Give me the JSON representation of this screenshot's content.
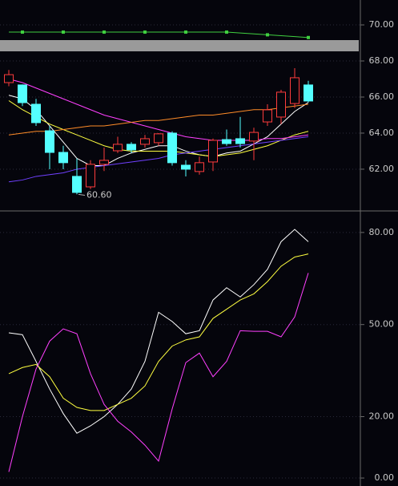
{
  "chart_data": [
    {
      "type": "candlestick",
      "open": [
        66.8,
        66.67,
        65.6,
        64.13,
        62.93,
        61.6,
        61.02,
        62.27,
        63.02,
        63.38,
        63.38,
        63.47,
        64.0,
        62.22,
        61.87,
        62.4,
        63.64,
        63.69,
        63.56,
        64.62,
        64.89,
        65.64,
        66.67
      ],
      "high": [
        67.5,
        66.7,
        65.9,
        64.4,
        63.3,
        62.6,
        62.5,
        63.2,
        63.8,
        63.5,
        63.9,
        64.0,
        64.1,
        62.5,
        62.7,
        63.7,
        64.2,
        64.9,
        64.3,
        65.6,
        66.4,
        67.6,
        66.9
      ],
      "low": [
        66.6,
        65.5,
        64.4,
        62.0,
        62.0,
        60.6,
        60.9,
        61.9,
        62.9,
        62.9,
        63.2,
        63.3,
        62.2,
        61.6,
        61.7,
        61.9,
        63.3,
        63.2,
        62.5,
        64.4,
        64.5,
        65.4,
        65.7
      ],
      "close": [
        67.24,
        65.69,
        64.58,
        62.93,
        62.36,
        60.71,
        62.27,
        62.49,
        63.38,
        63.07,
        63.69,
        63.96,
        62.36,
        62.0,
        62.36,
        63.6,
        63.42,
        63.42,
        64.04,
        65.29,
        66.27,
        67.07,
        65.78
      ],
      "up_color": "#ff3c3c",
      "down_color": "#54ffff",
      "series": [
        {
          "color": "#ffffff",
          "values": [
            66.1,
            65.9,
            65.3,
            64.4,
            63.5,
            62.6,
            62.2,
            62.2,
            62.6,
            62.9,
            63.1,
            63.3,
            63.3,
            63.0,
            62.8,
            62.7,
            62.9,
            63.0,
            63.4,
            63.8,
            64.5,
            65.2,
            65.7
          ]
        },
        {
          "color": "#ffff40",
          "values": [
            65.8,
            65.3,
            64.9,
            64.5,
            64.2,
            63.9,
            63.6,
            63.3,
            63.1,
            63.0,
            63.0,
            63.0,
            63.0,
            62.9,
            62.8,
            62.7,
            62.8,
            62.9,
            63.1,
            63.3,
            63.6,
            63.9,
            64.1
          ]
        },
        {
          "color": "#ff40ff",
          "values": [
            67.0,
            66.8,
            66.5,
            66.2,
            65.9,
            65.6,
            65.3,
            65.0,
            64.8,
            64.6,
            64.4,
            64.2,
            64.0,
            63.8,
            63.7,
            63.6,
            63.6,
            63.6,
            63.6,
            63.7,
            63.7,
            63.8,
            63.9
          ]
        },
        {
          "color": "#ff8c28",
          "values": [
            63.9,
            64.0,
            64.1,
            64.1,
            64.2,
            64.3,
            64.4,
            64.4,
            64.5,
            64.6,
            64.7,
            64.7,
            64.8,
            64.9,
            65.0,
            65.0,
            65.1,
            65.2,
            65.3,
            65.3,
            65.4,
            65.5,
            65.6
          ]
        },
        {
          "color": "#7040ff",
          "values": [
            61.3,
            61.4,
            61.6,
            61.7,
            61.8,
            62.0,
            62.1,
            62.2,
            62.3,
            62.4,
            62.5,
            62.6,
            62.8,
            62.9,
            63.0,
            63.1,
            63.2,
            63.3,
            63.4,
            63.5,
            63.6,
            63.7,
            63.8
          ]
        },
        {
          "color": "#40d040",
          "values": [
            69.6,
            69.6,
            69.6,
            69.6,
            69.6,
            69.6,
            69.6,
            69.6,
            69.6,
            69.6,
            69.6,
            69.6,
            69.6,
            69.6,
            69.6,
            69.6,
            69.6,
            69.55,
            69.5,
            69.45,
            69.4,
            69.35,
            69.3
          ]
        }
      ],
      "low_label": "60.60",
      "ylim": [
        59.73,
        71.38
      ],
      "yticks": [
        {
          "value": 62,
          "label": "62.00"
        },
        {
          "value": 64,
          "label": "64.00"
        },
        {
          "value": 66,
          "label": "66.00"
        },
        {
          "value": 68,
          "label": "68.00"
        },
        {
          "value": 70,
          "label": "70.00"
        }
      ],
      "grid": true
    },
    {
      "type": "line",
      "series": [
        {
          "color": "#ffffff",
          "values": [
            47.3,
            46.7,
            38,
            29,
            21,
            14.6,
            17,
            20,
            24,
            29,
            38,
            54,
            51,
            47,
            48,
            58,
            62,
            59,
            63,
            68,
            77,
            81,
            77
          ]
        },
        {
          "color": "#ffff40",
          "values": [
            34,
            36,
            37,
            33,
            26,
            23,
            22,
            22,
            24,
            26,
            30,
            38,
            43,
            45,
            46,
            52,
            55,
            58,
            60,
            64,
            69,
            72,
            73
          ]
        },
        {
          "color": "#ff40ff",
          "values": [
            2,
            20,
            35.5,
            44.6,
            48.6,
            47,
            34,
            24,
            18.5,
            15,
            10.7,
            5.5,
            22.5,
            37.6,
            40.7,
            33,
            38,
            48,
            47.8,
            47.8,
            46,
            52.5,
            66.8
          ]
        }
      ],
      "ylim": [
        -2.6,
        86.5
      ],
      "yticks": [
        {
          "value": 0,
          "label": "0.00"
        },
        {
          "value": 20,
          "label": "20.00"
        },
        {
          "value": 50,
          "label": "50.00"
        },
        {
          "value": 80,
          "label": "80.00"
        }
      ],
      "grid": true
    }
  ]
}
